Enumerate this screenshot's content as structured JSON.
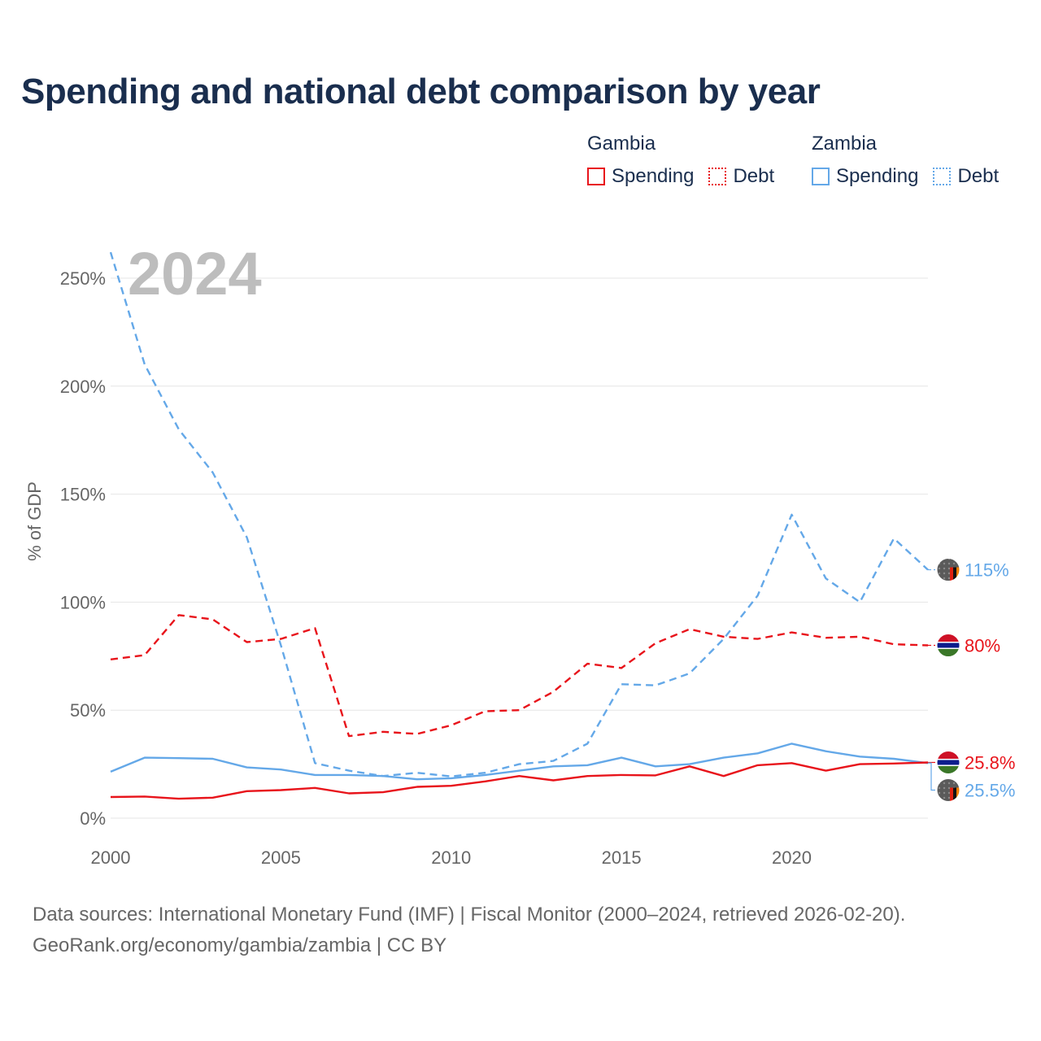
{
  "title": "Spending and national debt comparison by year",
  "legend": {
    "groups": [
      {
        "country": "Gambia",
        "color": "#e8141b",
        "items": [
          {
            "label": "Spending",
            "style": "solid"
          },
          {
            "label": "Debt",
            "style": "dotted"
          }
        ]
      },
      {
        "country": "Zambia",
        "color": "#64a8e8",
        "items": [
          {
            "label": "Spending",
            "style": "solid"
          },
          {
            "label": "Debt",
            "style": "dotted"
          }
        ]
      }
    ]
  },
  "colors": {
    "gambia": "#e8141b",
    "zambia": "#64a8e8",
    "grid": "#e6e6e6",
    "axis_text": "#666666",
    "year_watermark": "#bdbdbd",
    "title": "#1a2e4e"
  },
  "chart_data": {
    "type": "line",
    "title": "Spending and national debt comparison by year",
    "year_watermark": "2024",
    "xlabel": "",
    "ylabel": "% of GDP",
    "xlim": [
      2000,
      2024
    ],
    "ylim": [
      0,
      250
    ],
    "x_ticks": [
      2000,
      2005,
      2010,
      2015,
      2020
    ],
    "y_ticks": [
      0,
      50,
      100,
      150,
      200,
      250
    ],
    "y_tick_labels": [
      "0%",
      "50%",
      "100%",
      "150%",
      "200%",
      "250%"
    ],
    "grid": true,
    "x": [
      2000,
      2001,
      2002,
      2003,
      2004,
      2005,
      2006,
      2007,
      2008,
      2009,
      2010,
      2011,
      2012,
      2013,
      2014,
      2015,
      2016,
      2017,
      2018,
      2019,
      2020,
      2021,
      2022,
      2023,
      2024
    ],
    "series": [
      {
        "name": "Zambia Debt",
        "country": "Zambia",
        "metric": "Debt",
        "color": "#64a8e8",
        "style": "dashed",
        "values": [
          262,
          210,
          180,
          160,
          130,
          80,
          25.5,
          22,
          19.5,
          21,
          19.3,
          21,
          25,
          26.5,
          34.5,
          62,
          61.5,
          67,
          83,
          103,
          140.5,
          111,
          100,
          129.5,
          115
        ],
        "end_label": "115%",
        "flag": "zambia"
      },
      {
        "name": "Gambia Debt",
        "country": "Gambia",
        "metric": "Debt",
        "color": "#e8141b",
        "style": "dashed",
        "values": [
          73.5,
          75.5,
          94,
          92,
          81.5,
          83,
          88,
          38,
          40,
          39,
          43,
          49.5,
          50,
          58.5,
          71.5,
          69.5,
          81,
          87.5,
          84,
          83,
          86,
          83.5,
          84,
          80.5,
          80
        ],
        "end_label": "80%",
        "flag": "gambia"
      },
      {
        "name": "Zambia Spending",
        "country": "Zambia",
        "metric": "Spending",
        "color": "#64a8e8",
        "style": "solid",
        "values": [
          21.5,
          28,
          27.8,
          27.5,
          23.5,
          22.5,
          20,
          20,
          19.5,
          18,
          18.5,
          20,
          22,
          24,
          24.5,
          28,
          24,
          25,
          28,
          30,
          34.5,
          31,
          28.5,
          27.5,
          25.5
        ],
        "end_label": "25.5%",
        "flag": "zambia"
      },
      {
        "name": "Gambia Spending",
        "country": "Gambia",
        "metric": "Spending",
        "color": "#e8141b",
        "style": "solid",
        "values": [
          9.8,
          10,
          9,
          9.5,
          12.5,
          13,
          14,
          11.5,
          12,
          14.5,
          15,
          17,
          19.5,
          17.5,
          19.5,
          20,
          19.8,
          24,
          19.5,
          24.5,
          25.5,
          22,
          25,
          25.3,
          25.8
        ],
        "end_label": "25.8%",
        "flag": "gambia"
      }
    ]
  },
  "footer": {
    "sources": "Data sources: International Monetary Fund (IMF) | Fiscal Monitor (2000–2024, retrieved 2026-02-20).",
    "attribution": "GeoRank.org/economy/gambia/zambia | CC BY"
  }
}
